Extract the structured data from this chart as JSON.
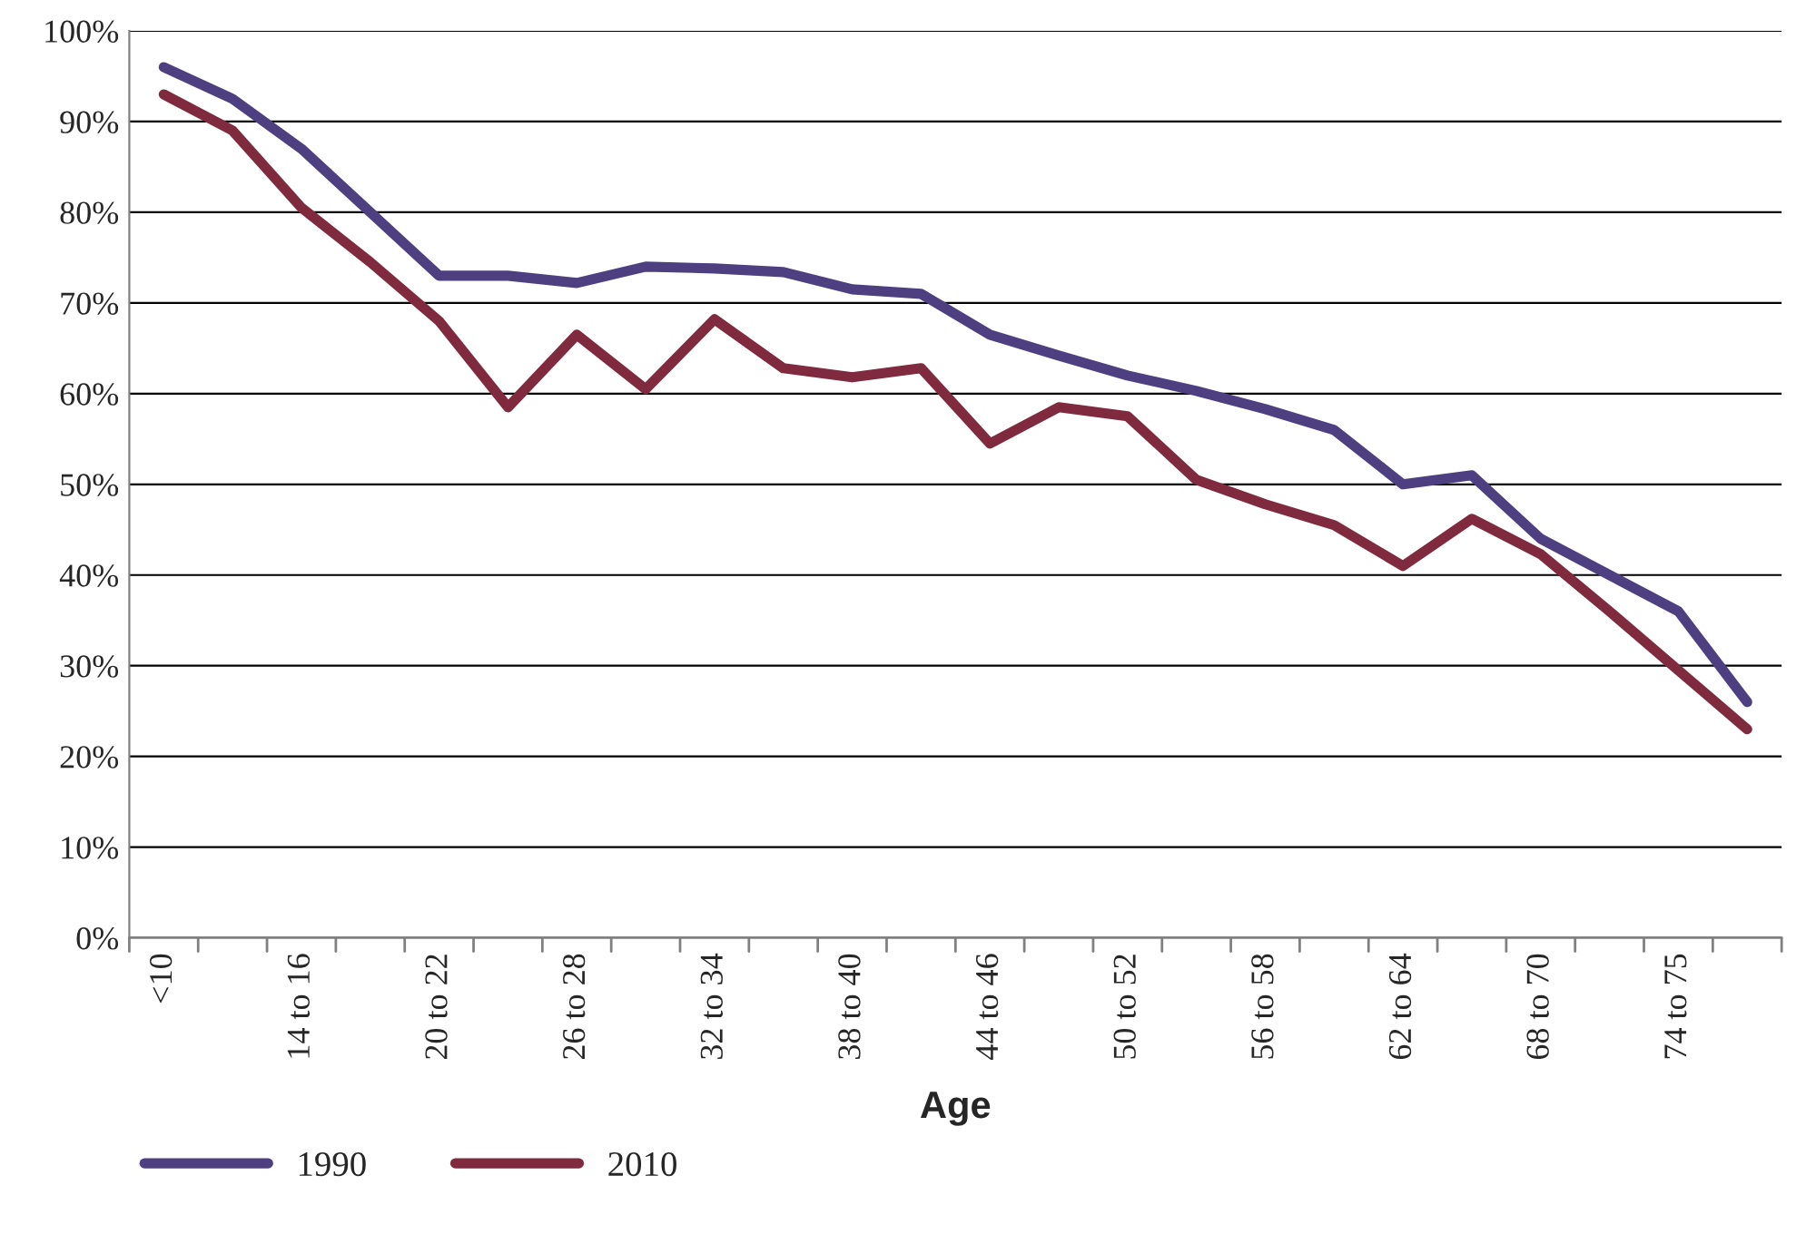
{
  "chart_data": {
    "type": "line",
    "xlabel": "Age",
    "categories": [
      "<10",
      null,
      "14 to 16",
      null,
      "20 to 22",
      null,
      "26 to 28",
      null,
      "32 to 34",
      null,
      "38 to 40",
      null,
      "44 to 46",
      null,
      "50 to 52",
      null,
      "56 to 58",
      null,
      "62 to 64",
      null,
      "68 to 70",
      null,
      "74 to 75",
      null
    ],
    "series": [
      {
        "name": "1990",
        "color": "#4e3f80",
        "values": [
          96,
          92.5,
          87,
          80,
          73,
          73,
          72.2,
          74,
          73.8,
          73.4,
          71.5,
          71,
          66.5,
          64.2,
          62,
          60.3,
          58.3,
          56,
          50,
          51,
          44,
          40,
          36,
          26
        ]
      },
      {
        "name": "2010",
        "color": "#7f2a3e",
        "values": [
          93,
          89,
          80.5,
          74.5,
          68,
          58.5,
          66.5,
          60.5,
          68.2,
          62.8,
          61.8,
          62.8,
          54.5,
          58.5,
          57.5,
          50.5,
          47.8,
          45.5,
          41,
          46.2,
          42.3,
          36,
          29.5,
          23
        ]
      }
    ],
    "ylim": [
      0,
      100
    ],
    "yticks": [
      {
        "value": 0,
        "label": "0%"
      },
      {
        "value": 10,
        "label": "10%"
      },
      {
        "value": 20,
        "label": "20%"
      },
      {
        "value": 30,
        "label": "30%"
      },
      {
        "value": 40,
        "label": "40%"
      },
      {
        "value": 50,
        "label": "50%"
      },
      {
        "value": 60,
        "label": "60%"
      },
      {
        "value": 70,
        "label": "70%"
      },
      {
        "value": 80,
        "label": "80%"
      },
      {
        "value": 90,
        "label": "90%"
      },
      {
        "value": 100,
        "label": "100%"
      }
    ],
    "grid": "y",
    "legend": "bottom left",
    "marker": "none",
    "line_style": "solid"
  }
}
